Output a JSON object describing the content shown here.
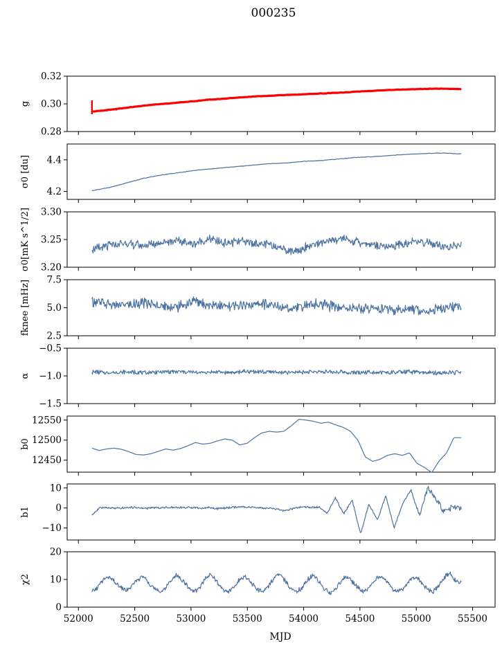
{
  "figure": {
    "title": "000235",
    "xlabel": "MJD"
  },
  "chart_data": {
    "type": "line",
    "xlim": [
      51900,
      55700
    ],
    "x_ticks": [
      52000,
      52500,
      53000,
      53500,
      54000,
      54500,
      55000,
      55500
    ],
    "x_start": 52120,
    "x_end": 55400,
    "panels": [
      {
        "key": "g",
        "ylabel": "g",
        "ylim": [
          0.28,
          0.32
        ],
        "yticks": [
          "0.28",
          "0.30",
          "0.32"
        ],
        "has_fit": true,
        "series": [
          {
            "values": [
              0.2945,
              0.2955,
              0.2975,
              0.2992,
              0.3003,
              0.3015,
              0.3028,
              0.304,
              0.3052,
              0.3058,
              0.3065,
              0.307,
              0.3075,
              0.3083,
              0.3092,
              0.3098,
              0.3103,
              0.3108,
              0.311,
              0.3105
            ]
          }
        ],
        "fit": {
          "values": [
            0.2945,
            0.2958,
            0.2976,
            0.2992,
            0.3004,
            0.3016,
            0.3029,
            0.304,
            0.305,
            0.3058,
            0.3064,
            0.307,
            0.3076,
            0.3083,
            0.3091,
            0.3098,
            0.3103,
            0.3107,
            0.311,
            0.3107
          ]
        }
      },
      {
        "key": "sigma0_du",
        "ylabel": "σ0 [du]",
        "ylim": [
          4.15,
          4.5
        ],
        "yticks": [
          "4.2",
          "4.4"
        ],
        "series": [
          {
            "values": [
              4.205,
              4.225,
              4.255,
              4.285,
              4.305,
              4.32,
              4.335,
              4.345,
              4.355,
              4.365,
              4.375,
              4.38,
              4.39,
              4.395,
              4.405,
              4.415,
              4.42,
              4.428,
              4.435,
              4.44,
              4.443,
              4.437
            ]
          }
        ]
      },
      {
        "key": "sigma0_mK",
        "ylabel": "σ0[mK s^1/2]",
        "ylim": [
          3.2,
          3.3
        ],
        "yticks": [
          "3.20",
          "3.25",
          "3.30"
        ],
        "series": [
          {
            "values": [
              3.232,
              3.238,
              3.244,
              3.238,
              3.245,
              3.248,
              3.242,
              3.25,
              3.244,
              3.246,
              3.242,
              3.238,
              3.228,
              3.24,
              3.246,
              3.252,
              3.244,
              3.24,
              3.238,
              3.246,
              3.244,
              3.236,
              3.24
            ]
          }
        ]
      },
      {
        "key": "fknee",
        "ylabel": "fknee [mHz]",
        "ylim": [
          2.5,
          7.5
        ],
        "yticks": [
          "2.5",
          "5.0",
          "7.5"
        ],
        "series": [
          {
            "values": [
              5.6,
              5.3,
              5.2,
              5.4,
              5.2,
              5.0,
              5.6,
              5.3,
              5.1,
              5.2,
              5.4,
              5.1,
              5.0,
              5.3,
              5.2,
              5.0,
              4.9,
              5.0,
              4.8,
              4.9,
              4.8,
              4.9,
              5.1
            ]
          }
        ]
      },
      {
        "key": "alpha",
        "ylabel": "α",
        "ylim": [
          -1.5,
          -0.5
        ],
        "yticks": [
          "−1.5",
          "−1.0",
          "−0.5"
        ],
        "series": [
          {
            "values": [
              -0.93,
              -0.94,
              -0.93,
              -0.94,
              -0.93,
              -0.92,
              -0.94,
              -0.93,
              -0.94,
              -0.92,
              -0.93,
              -0.94,
              -0.93,
              -0.92,
              -0.93,
              -0.94,
              -0.93,
              -0.94,
              -0.93,
              -0.94,
              -0.95,
              -0.94
            ]
          }
        ]
      },
      {
        "key": "b0",
        "ylabel": "b0",
        "ylim": [
          12420,
          12560
        ],
        "yticks": [
          "12450",
          "12500",
          "12550"
        ],
        "series": [
          {
            "values": [
              12480,
              12474,
              12478,
              12480,
              12477,
              12471,
              12464,
              12463,
              12466,
              12472,
              12478,
              12475,
              12479,
              12486,
              12494,
              12490,
              12492,
              12498,
              12503,
              12500,
              12488,
              12492,
              12506,
              12518,
              12522,
              12520,
              12522,
              12536,
              12552,
              12550,
              12547,
              12542,
              12545,
              12538,
              12532,
              12522,
              12500,
              12458,
              12447,
              12452,
              12462,
              12466,
              12462,
              12468,
              12442,
              12432,
              12419,
              12448,
              12468,
              12506,
              12506
            ]
          }
        ]
      },
      {
        "key": "b1",
        "ylabel": "b1",
        "ylim": [
          -16,
          12
        ],
        "yticks": [
          "−10",
          "0",
          "10"
        ],
        "series": [
          {
            "values": [
              -3.5,
              0.3,
              0.0,
              -0.2,
              0.1,
              0.3,
              -0.2,
              0.0,
              0.1,
              0.2,
              0.4,
              0.1,
              0.3,
              -0.1,
              0.2,
              -0.4,
              0.0,
              0.3,
              0.5,
              0.2,
              0.0,
              -0.2,
              -0.5,
              -1.5,
              -0.3,
              0.4,
              0.3,
              0.5,
              -2.5,
              5.0,
              -3.0,
              4.0,
              -13.0,
              2.0,
              -6.0,
              6.0,
              -10.0,
              2.0,
              9.0,
              -4.0,
              10.0,
              4.0,
              -2.0,
              0.5,
              0.0
            ]
          }
        ]
      },
      {
        "key": "chi2",
        "ylabel": "χ2",
        "ylim": [
          0,
          20
        ],
        "yticks": [
          "0",
          "10",
          "20"
        ],
        "series": [
          {
            "values": [
              5.5,
              7,
              10,
              11,
              9,
              7,
              6,
              7.5,
              10,
              11,
              9,
              6.5,
              5.5,
              7,
              10,
              11.5,
              9.5,
              7,
              5.5,
              7,
              10.5,
              12,
              9,
              6.5,
              5.5,
              7,
              10,
              11,
              9,
              6.5,
              5.5,
              7.5,
              10.5,
              12,
              9.5,
              7,
              5.5,
              7,
              10,
              11.5,
              9,
              6.5,
              5,
              7,
              10,
              11,
              9,
              6.5,
              5.5,
              7.5,
              10.5,
              11,
              9,
              6.5,
              5.5,
              7,
              10,
              11,
              9,
              6.5,
              5.5,
              7.5,
              10.5,
              12.5,
              9.5,
              9
            ]
          }
        ]
      }
    ]
  }
}
